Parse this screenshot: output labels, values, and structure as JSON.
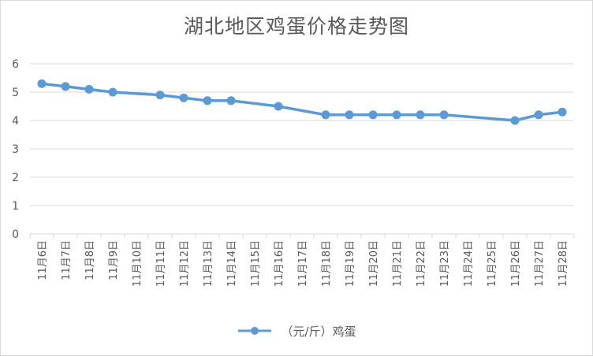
{
  "chart_data": {
    "type": "line",
    "title": "湖北地区鸡蛋价格走势图",
    "categories": [
      "11月6日",
      "11月7日",
      "11月8日",
      "11月9日",
      "11月10日",
      "11月11日",
      "11月12日",
      "11月13日",
      "11月14日",
      "11月15日",
      "11月16日",
      "11月17日",
      "11月18日",
      "11月19日",
      "11月20日",
      "11月21日",
      "11月22日",
      "11月23日",
      "11月24日",
      "11月25日",
      "11月26日",
      "11月27日",
      "11月28日"
    ],
    "series": [
      {
        "name": "（元/斤）鸡蛋",
        "color": "#5b9bd5",
        "values": [
          5.3,
          5.2,
          5.1,
          5.0,
          null,
          4.9,
          4.8,
          4.7,
          4.7,
          null,
          4.5,
          null,
          4.2,
          4.2,
          4.2,
          4.2,
          4.2,
          4.2,
          null,
          null,
          4.0,
          4.2,
          4.3
        ]
      }
    ],
    "ylim": [
      0,
      6
    ],
    "yticks": [
      0,
      1,
      2,
      3,
      4,
      5,
      6
    ],
    "xlabel": "",
    "ylabel": "",
    "grid": true,
    "legend": "bottom",
    "line_color": "#5b9bd5",
    "grid_color": "#d9d9d9",
    "text_color": "#595959"
  }
}
